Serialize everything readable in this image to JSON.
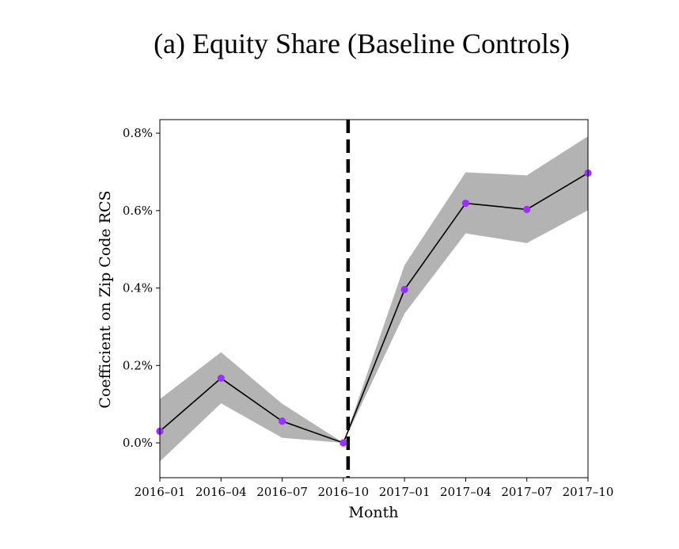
{
  "title": "(a) Equity Share (Baseline Controls)",
  "chart_data": {
    "type": "line",
    "title": "(a) Equity Share (Baseline Controls)",
    "xlabel": "Month",
    "ylabel": "Coefficient on Zip Code RCS",
    "x_categories": [
      "2016–01",
      "2016–04",
      "2016–07",
      "2016–10",
      "2017–01",
      "2017–04",
      "2017–07",
      "2017–10"
    ],
    "y_ticks": [
      "0.0%",
      "0.2%",
      "0.4%",
      "0.6%",
      "0.8%"
    ],
    "y_tick_values": [
      0.0,
      0.2,
      0.4,
      0.6,
      0.8
    ],
    "ylim": [
      -0.09,
      0.835
    ],
    "series": [
      {
        "values": [
          0.03,
          0.167,
          0.056,
          0.0,
          0.396,
          0.619,
          0.603,
          0.697
        ],
        "ci_lower": [
          -0.048,
          0.102,
          0.013,
          0.0,
          0.334,
          0.541,
          0.516,
          0.601
        ],
        "ci_upper": [
          0.113,
          0.234,
          0.101,
          0.0,
          0.459,
          0.699,
          0.691,
          0.792
        ]
      }
    ],
    "event_line_x": "2016–10",
    "colors": {
      "line": "#000000",
      "marker": "#9b30ff",
      "band": "#b3b3b3",
      "event_line": "#000000"
    },
    "grid": false,
    "legend": "none"
  }
}
